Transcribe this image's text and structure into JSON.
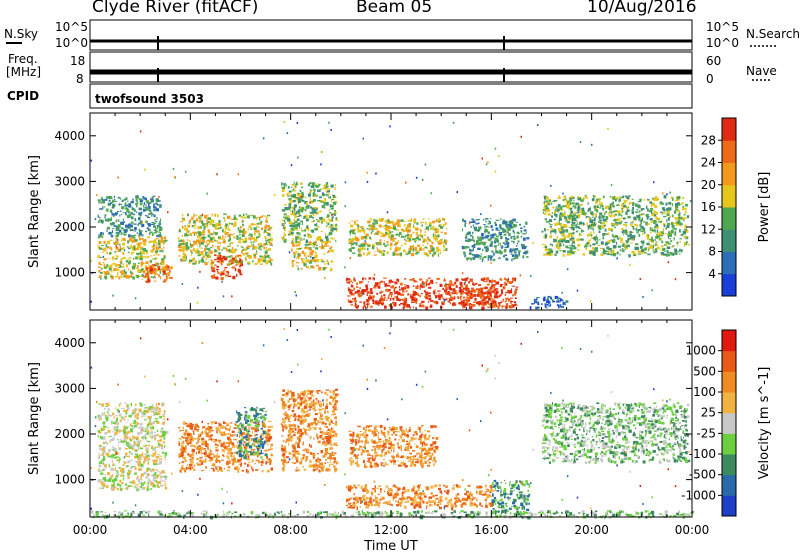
{
  "header": {
    "station": "Clyde River (fitACF)",
    "beam": "Beam 05",
    "date": "10/Aug/2016"
  },
  "strips": {
    "nsky_label": "N.Sky",
    "nsearch_label": "N.Search",
    "nsky_ticks": [
      "10^5",
      "10^0"
    ],
    "nsearch_ticks": [
      "10^5",
      "10^0"
    ],
    "freq_label_1": "Freq.",
    "freq_label_2": "[MHz]",
    "freq_ticks": [
      "18",
      "8"
    ],
    "nave_label": "Nave",
    "nave_ticks": [
      "60",
      "0"
    ],
    "cpid_label": "CPID",
    "cpid_value": "twofsound 3503"
  },
  "colors": {
    "power": [
      "#1a3fd8",
      "#2d6fb7",
      "#3f8f74",
      "#4fa84f",
      "#e6c61a",
      "#f39a1e",
      "#ec6a18",
      "#df2b12"
    ],
    "velocity": [
      "#1d3fc9",
      "#2a6aa8",
      "#3d8a5e",
      "#6bcf3f",
      "#c8c8c8",
      "#f0b341",
      "#f08a22",
      "#e85a16",
      "#e01a10"
    ]
  },
  "chart_data": [
    {
      "type": "heatmap",
      "name": "power",
      "ylabel": "Slant Range [km]",
      "yticks": [
        "4000",
        "3000",
        "2000",
        "1000"
      ],
      "ylim": [
        180,
        4500
      ],
      "x_unit": "hours UT",
      "xlim": [
        0,
        24
      ],
      "colorbar_label": "Power [dB]",
      "colorbar_ticks": [
        "28",
        "24",
        "20",
        "16",
        "12",
        "8",
        "4"
      ],
      "colorbar_range": [
        0,
        32
      ],
      "echo_regions": [
        {
          "t0": 0.3,
          "t1": 2.8,
          "r0": 1800,
          "r1": 2700,
          "level": 2
        },
        {
          "t0": 0.3,
          "t1": 3.0,
          "r0": 900,
          "r1": 1800,
          "level": 4
        },
        {
          "t0": 2.0,
          "t1": 3.2,
          "r0": 800,
          "r1": 1200,
          "level": 6
        },
        {
          "t0": 3.5,
          "t1": 7.2,
          "r0": 1200,
          "r1": 2300,
          "level": 4
        },
        {
          "t0": 4.8,
          "t1": 6.0,
          "r0": 900,
          "r1": 1400,
          "level": 7
        },
        {
          "t0": 7.6,
          "t1": 9.8,
          "r0": 1700,
          "r1": 3000,
          "level": 3
        },
        {
          "t0": 8.0,
          "t1": 9.6,
          "r0": 1100,
          "r1": 1700,
          "level": 4
        },
        {
          "t0": 10.3,
          "t1": 14.2,
          "r0": 1400,
          "r1": 2200,
          "level": 4
        },
        {
          "t0": 10.2,
          "t1": 17.0,
          "r0": 250,
          "r1": 900,
          "level": 7
        },
        {
          "t0": 14.2,
          "t1": 16.2,
          "r0": 300,
          "r1": 700,
          "level": 7
        },
        {
          "t0": 14.8,
          "t1": 17.4,
          "r0": 1300,
          "r1": 2200,
          "level": 2
        },
        {
          "t0": 18.0,
          "t1": 23.8,
          "r0": 1400,
          "r1": 2700,
          "level": 3
        },
        {
          "t0": 17.5,
          "t1": 19.0,
          "r0": 250,
          "r1": 500,
          "level": 1
        }
      ]
    },
    {
      "type": "heatmap",
      "name": "velocity",
      "ylabel": "Slant Range [km]",
      "yticks": [
        "4000",
        "3000",
        "2000",
        "1000"
      ],
      "ylim": [
        180,
        4500
      ],
      "x_unit": "hours UT",
      "xlim": [
        0,
        24
      ],
      "xticks": [
        "00:00",
        "04:00",
        "08:00",
        "12:00",
        "16:00",
        "20:00",
        "00:00"
      ],
      "xlabel": "Time UT",
      "colorbar_label": "Velocity [m s^-1]",
      "colorbar_ticks": [
        "1000",
        "500",
        "100",
        "25",
        "-25",
        "-100",
        "-500",
        "-1000"
      ],
      "echo_regions": [
        {
          "t0": 0.3,
          "t1": 3.0,
          "r0": 1800,
          "r1": 2700,
          "level": 4
        },
        {
          "t0": 0.3,
          "t1": 3.0,
          "r0": 800,
          "r1": 1800,
          "level": 4
        },
        {
          "t0": 3.5,
          "t1": 7.2,
          "r0": 1200,
          "r1": 2300,
          "level": 6
        },
        {
          "t0": 5.8,
          "t1": 7.0,
          "r0": 1500,
          "r1": 2600,
          "level": 2
        },
        {
          "t0": 7.6,
          "t1": 9.8,
          "r0": 1200,
          "r1": 3000,
          "level": 6
        },
        {
          "t0": 10.3,
          "t1": 13.8,
          "r0": 1300,
          "r1": 2200,
          "level": 6
        },
        {
          "t0": 10.2,
          "t1": 16.0,
          "r0": 400,
          "r1": 900,
          "level": 6
        },
        {
          "t0": 16.0,
          "t1": 17.5,
          "r0": 300,
          "r1": 1000,
          "level": 2
        },
        {
          "t0": 18.0,
          "t1": 23.8,
          "r0": 1400,
          "r1": 2700,
          "level": 3
        },
        {
          "t0": 0.0,
          "t1": 24.0,
          "r0": 200,
          "r1": 330,
          "level": 3
        }
      ]
    }
  ]
}
